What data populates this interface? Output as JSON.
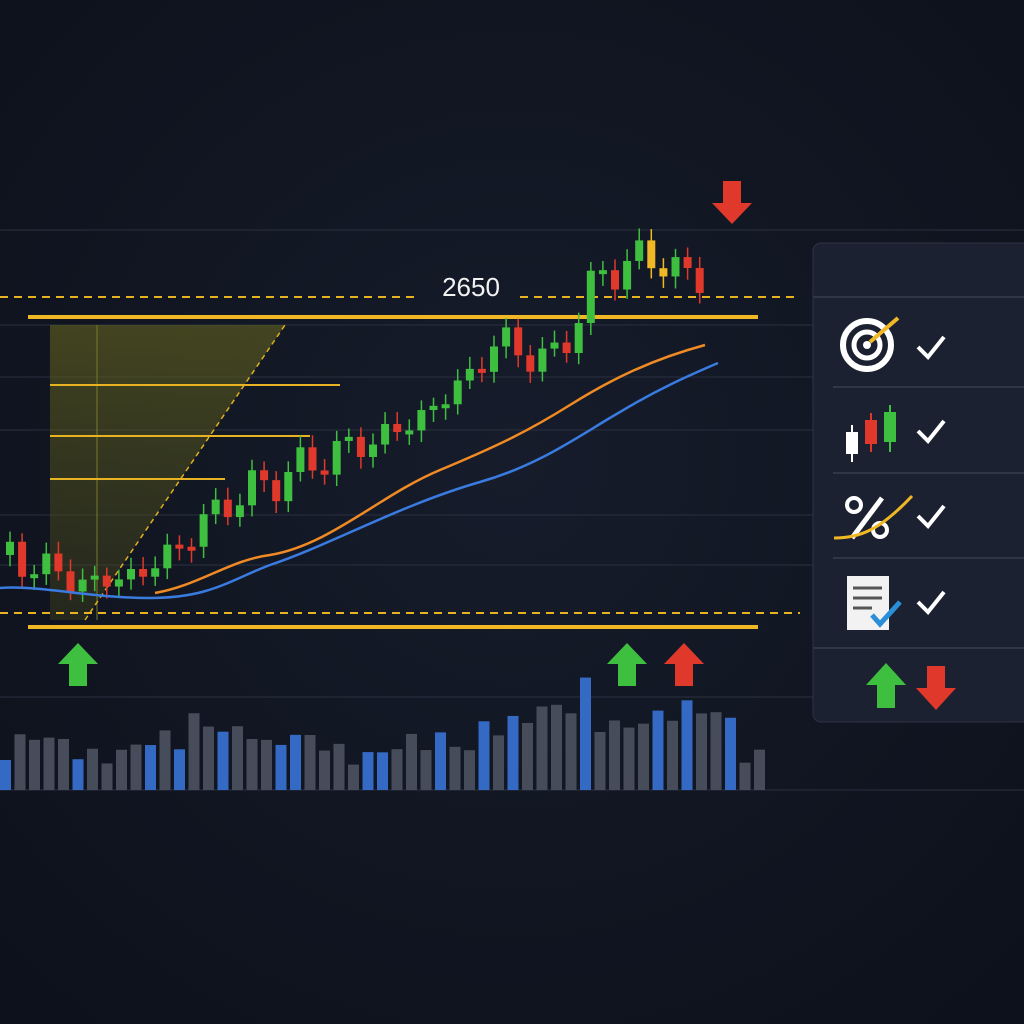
{
  "price_level": {
    "label": "2650"
  }
}
